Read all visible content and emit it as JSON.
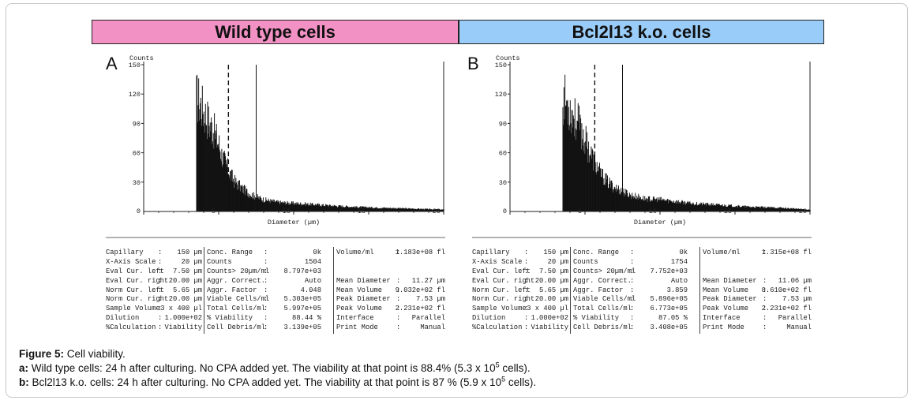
{
  "headers": {
    "a": "Wild type cells",
    "b": "Bcl2l13 k.o. cells"
  },
  "panels": [
    {
      "letter": "A",
      "table": {
        "col1": [
          [
            "Capillary",
            ":",
            "150 µm"
          ],
          [
            "X-Axis Scale",
            ":",
            "20 µm"
          ],
          [
            "Eval Cur. left",
            ":",
            "7.50 µm"
          ],
          [
            "Eval Cur. right",
            ":",
            "20.00 µm"
          ],
          [
            "Norm Cur. left",
            ":",
            "5.65 µm"
          ],
          [
            "Norm Cur. right",
            ":",
            "20.00 µm"
          ],
          [
            "Sample Volume",
            ":",
            "3 x 400 µl"
          ],
          [
            "Dilution",
            ":",
            "1.000e+02"
          ],
          [
            "%Calculation",
            ":",
            "Viability"
          ]
        ],
        "col2": [
          [
            "Conc. Range",
            ":",
            "0k"
          ],
          [
            "Counts",
            ":",
            "1504"
          ],
          [
            "Counts> 20µm/ml",
            ":",
            "8.797e+03"
          ],
          [
            "Aggr. Correct.",
            ":",
            "Auto"
          ],
          [
            "Aggr. Factor",
            ":",
            "4.048"
          ],
          [
            "Viable Cells/ml",
            ":",
            "5.303e+05"
          ],
          [
            "Total Cells/ml",
            ":",
            "5.997e+05"
          ],
          [
            "% Viability",
            ":",
            "88.44 %"
          ],
          [
            "Cell Debris/ml",
            ":",
            "3.139e+05"
          ]
        ],
        "col3": [
          [
            "Volume/ml",
            ":",
            "1.183e+08 fl"
          ],
          [
            "",
            "",
            ""
          ],
          [
            "",
            "",
            ""
          ],
          [
            "Mean Diameter",
            ":",
            "11.27 µm"
          ],
          [
            "Mean Volume",
            ":",
            "9.032e+02 fl"
          ],
          [
            "Peak Diameter",
            ":",
            "7.53 µm"
          ],
          [
            "Peak Volume",
            ":",
            "2.231e+02 fl"
          ],
          [
            "Interface",
            ":",
            "Parallel"
          ],
          [
            "Print Mode",
            ":",
            "Manual"
          ]
        ]
      }
    },
    {
      "letter": "B",
      "table": {
        "col1": [
          [
            "Capillary",
            ":",
            "150 µm"
          ],
          [
            "X-Axis Scale",
            ":",
            "20 µm"
          ],
          [
            "Eval Cur. left",
            ":",
            "7.50 µm"
          ],
          [
            "Eval Cur. right",
            ":",
            "20.00 µm"
          ],
          [
            "Norm Cur. left",
            ":",
            "5.65 µm"
          ],
          [
            "Norm Cur. right",
            ":",
            "20.00 µm"
          ],
          [
            "Sample Volume",
            ":",
            "3 x 400 µl"
          ],
          [
            "Dilution",
            ":",
            "1.000e+02"
          ],
          [
            "%Calculation",
            ":",
            "Viability"
          ]
        ],
        "col2": [
          [
            "Conc. Range",
            ":",
            "0k"
          ],
          [
            "Counts",
            ":",
            "1754"
          ],
          [
            "Counts> 20µm/ml",
            ":",
            "7.752e+03"
          ],
          [
            "Aggr. Correct.",
            ":",
            "Auto"
          ],
          [
            "Aggr. Factor",
            ":",
            "3.859"
          ],
          [
            "Viable Cells/ml",
            ":",
            "5.896e+05"
          ],
          [
            "Total Cells/ml",
            ":",
            "6.773e+05"
          ],
          [
            "% Viability",
            ":",
            "87.05 %"
          ],
          [
            "Cell Debris/ml",
            ":",
            "3.408e+05"
          ]
        ],
        "col3": [
          [
            "Volume/ml",
            ":",
            "1.315e+08 fl"
          ],
          [
            "",
            "",
            ""
          ],
          [
            "",
            "",
            ""
          ],
          [
            "Mean Diameter",
            ":",
            "11.06 µm"
          ],
          [
            "Mean Volume",
            ":",
            "8.610e+02 fl"
          ],
          [
            "Peak Diameter",
            ":",
            "7.53 µm"
          ],
          [
            "Peak Volume",
            ":",
            "2.231e+02 fl"
          ],
          [
            "Interface",
            ":",
            "Parallel"
          ],
          [
            "Print Mode",
            ":",
            "Manual"
          ]
        ]
      }
    }
  ],
  "caption": {
    "title_bold": "Figure 5:",
    "title_text": " Cell viability.",
    "a_bold": "a:",
    "a_text": " Wild type cells: 24 h after culturing. No CPA added yet. The viability at that point is 88.4% (5.3 x 10",
    "a_sup": "5",
    "a_end": " cells).",
    "b_bold": "b:",
    "b_text": " Bcl2l13 k.o. cells: 24 h after culturing. No CPA added yet. The viability at that point is 87 % (5.9 x 10",
    "b_sup": "5",
    "b_end": " cells)."
  },
  "chart_data": [
    {
      "type": "area",
      "title": "Wild type cells",
      "ylabel": "Counts",
      "xlabel": "Diameter (µm)",
      "xlim": [
        0,
        20
      ],
      "ylim": [
        0,
        150
      ],
      "x_ticks": [
        0,
        5,
        10,
        15,
        20
      ],
      "y_ticks": [
        30,
        60,
        90,
        120,
        150
      ],
      "cursors": {
        "norm_left": 5.65,
        "eval_left": 7.5
      },
      "x": [
        3.5,
        3.6,
        3.8,
        4.0,
        4.2,
        4.4,
        4.6,
        4.8,
        5.0,
        5.2,
        5.5,
        5.8,
        6.0,
        6.5,
        7.0,
        7.5,
        8.0,
        9.0,
        10.0,
        11.0,
        12.0,
        14.0,
        16.0,
        18.0,
        20.0
      ],
      "values": [
        126,
        124,
        118,
        110,
        104,
        96,
        92,
        82,
        74,
        62,
        50,
        40,
        34,
        26,
        20,
        16,
        13,
        10,
        9,
        8,
        7,
        5,
        4,
        3,
        2
      ]
    },
    {
      "type": "area",
      "title": "Bcl2l13 k.o. cells",
      "ylabel": "Counts",
      "xlabel": "Diameter (µm)",
      "xlim": [
        0,
        20
      ],
      "ylim": [
        0,
        150
      ],
      "x_ticks": [
        0,
        5,
        10,
        15,
        20
      ],
      "y_ticks": [
        30,
        60,
        90,
        120,
        150
      ],
      "cursors": {
        "norm_left": 5.65,
        "eval_left": 7.5
      },
      "x": [
        3.5,
        3.6,
        3.8,
        4.0,
        4.2,
        4.4,
        4.6,
        4.8,
        5.0,
        5.2,
        5.5,
        5.8,
        6.0,
        6.5,
        7.0,
        7.5,
        8.0,
        9.0,
        10.0,
        11.0,
        12.0,
        14.0,
        16.0,
        18.0,
        20.0
      ],
      "values": [
        126,
        124,
        119,
        112,
        106,
        100,
        94,
        86,
        78,
        70,
        58,
        48,
        42,
        32,
        26,
        22,
        18,
        14,
        13,
        11,
        9,
        7,
        5,
        4,
        2
      ]
    }
  ]
}
